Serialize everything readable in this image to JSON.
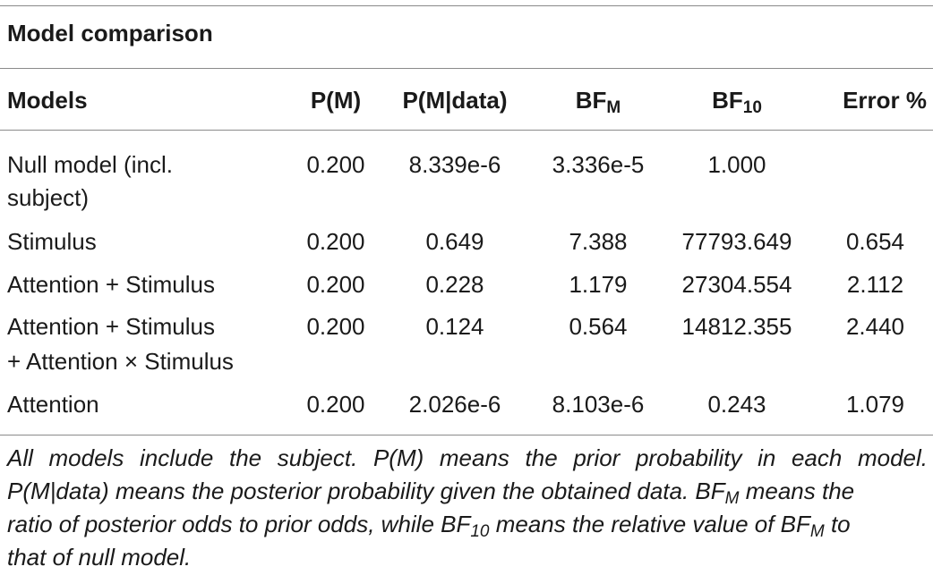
{
  "table": {
    "title": "Model comparison",
    "headers": {
      "models": "Models",
      "pm": "P(M)",
      "pm_data": "P(M|data)",
      "bfm_base": "BF",
      "bfm_sub": "M",
      "bf10_base": "BF",
      "bf10_sub": "10",
      "error": "Error %"
    },
    "rows": [
      {
        "model_line1": "Null model (incl.",
        "model_line2": "subject)",
        "pm": "0.200",
        "pm_data": "8.339e-6",
        "bfm": "3.336e-5",
        "bf10": "1.000",
        "error": ""
      },
      {
        "model_line1": "Stimulus",
        "model_line2": "",
        "pm": "0.200",
        "pm_data": "0.649",
        "bfm": "7.388",
        "bf10": "77793.649",
        "error": "0.654"
      },
      {
        "model_line1": "Attention + Stimulus",
        "model_line2": "",
        "pm": "0.200",
        "pm_data": "0.228",
        "bfm": "1.179",
        "bf10": "27304.554",
        "error": "2.112"
      },
      {
        "model_line1": "Attention + Stimulus",
        "model_line2": "+ Attention × Stimulus",
        "pm": "0.200",
        "pm_data": "0.124",
        "bfm": "0.564",
        "bf10": "14812.355",
        "error": "2.440"
      },
      {
        "model_line1": "Attention",
        "model_line2": "",
        "pm": "0.200",
        "pm_data": "2.026e-6",
        "bfm": "8.103e-6",
        "bf10": "0.243",
        "error": "1.079"
      }
    ],
    "footnote": {
      "l1": "All models include the subject. P(M) means the prior probability in each model.",
      "l2_a": "P(M|data) means the posterior probability given the obtained data. BF",
      "l2_sub": "M",
      "l2_b": " means the",
      "l3_a": "ratio of posterior odds to prior odds, while BF",
      "l3_sub1": "10",
      "l3_b": " means the relative value of BF",
      "l3_sub2": "M",
      "l3_c": " to",
      "l4": "that of null model."
    }
  }
}
